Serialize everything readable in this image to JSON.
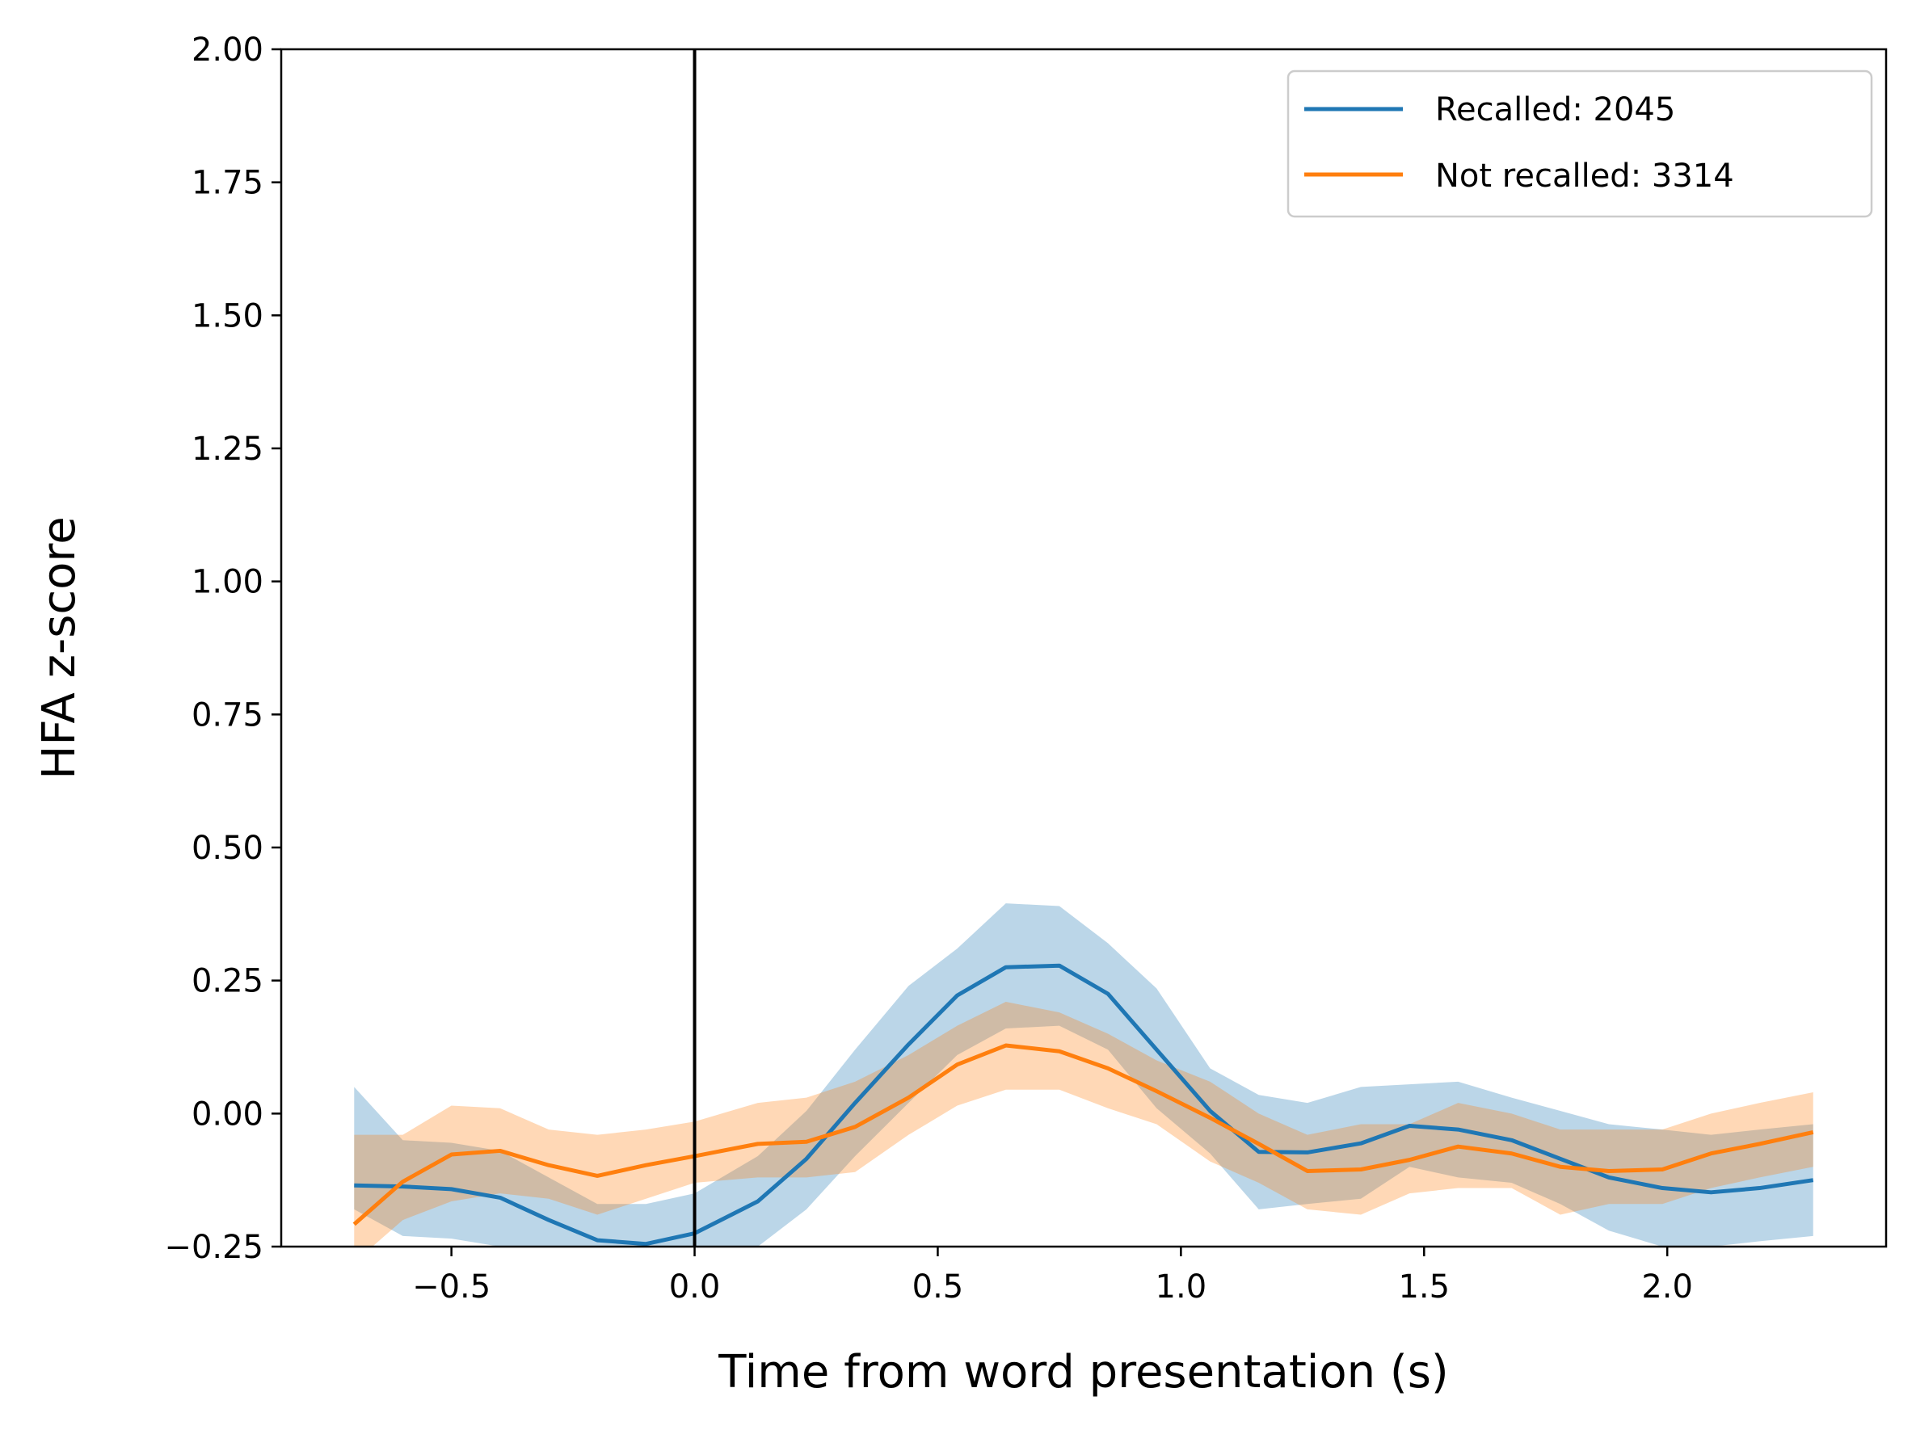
{
  "chart_data": {
    "type": "line",
    "title": "",
    "xlabel": "Time from word presentation (s)",
    "ylabel": "HFA z-score",
    "xlim": [
      -0.85,
      2.45
    ],
    "ylim": [
      -0.25,
      2.0
    ],
    "xticks": [
      -0.5,
      0.0,
      0.5,
      1.0,
      1.5,
      2.0
    ],
    "xtick_labels": [
      "−0.5",
      "0.0",
      "0.5",
      "1.0",
      "1.5",
      "2.0"
    ],
    "yticks": [
      -0.25,
      0.0,
      0.25,
      0.5,
      0.75,
      1.0,
      1.25,
      1.5,
      1.75,
      2.0
    ],
    "ytick_labels": [
      "−0.25",
      "0.00",
      "0.25",
      "0.50",
      "0.75",
      "1.00",
      "1.25",
      "1.50",
      "1.75",
      "2.00"
    ],
    "grid": false,
    "legend_position": "top-right",
    "vertical_line": {
      "x": 0.0,
      "color": "#000000"
    },
    "x": [
      -0.7,
      -0.6,
      -0.5,
      -0.4,
      -0.3,
      -0.2,
      -0.1,
      0.0,
      0.13,
      0.23,
      0.33,
      0.44,
      0.54,
      0.64,
      0.75,
      0.85,
      0.95,
      1.06,
      1.16,
      1.26,
      1.37,
      1.47,
      1.57,
      1.68,
      1.78,
      1.88,
      1.99,
      2.09,
      2.19,
      2.3
    ],
    "series": [
      {
        "name": "Recalled: 2045",
        "color": "#1f77b4",
        "values": [
          -0.135,
          -0.137,
          -0.142,
          -0.158,
          -0.2,
          -0.238,
          -0.245,
          -0.225,
          -0.165,
          -0.085,
          0.02,
          0.13,
          0.222,
          0.275,
          0.278,
          0.225,
          0.12,
          0.005,
          -0.072,
          -0.073,
          -0.056,
          -0.023,
          -0.03,
          -0.05,
          -0.085,
          -0.12,
          -0.14,
          -0.148,
          -0.14,
          -0.125
        ],
        "lower": [
          -0.18,
          -0.23,
          -0.235,
          -0.25,
          -0.28,
          -0.3,
          -0.31,
          -0.3,
          -0.25,
          -0.18,
          -0.08,
          0.02,
          0.11,
          0.16,
          0.165,
          0.12,
          0.01,
          -0.075,
          -0.18,
          -0.17,
          -0.16,
          -0.1,
          -0.12,
          -0.13,
          -0.17,
          -0.22,
          -0.25,
          -0.25,
          -0.24,
          -0.23
        ],
        "upper": [
          0.05,
          -0.05,
          -0.055,
          -0.07,
          -0.12,
          -0.17,
          -0.17,
          -0.15,
          -0.08,
          0.005,
          0.12,
          0.24,
          0.31,
          0.395,
          0.39,
          0.32,
          0.235,
          0.085,
          0.035,
          0.02,
          0.05,
          0.055,
          0.06,
          0.03,
          0.005,
          -0.02,
          -0.03,
          -0.04,
          -0.03,
          -0.02
        ]
      },
      {
        "name": "Not recalled: 3314",
        "color": "#ff7f0e",
        "values": [
          -0.208,
          -0.128,
          -0.077,
          -0.07,
          -0.097,
          -0.117,
          -0.097,
          -0.08,
          -0.057,
          -0.053,
          -0.025,
          0.03,
          0.092,
          0.128,
          0.117,
          0.085,
          0.042,
          -0.008,
          -0.057,
          -0.108,
          -0.105,
          -0.087,
          -0.062,
          -0.075,
          -0.1,
          -0.108,
          -0.105,
          -0.075,
          -0.057,
          -0.035
        ],
        "lower": [
          -0.28,
          -0.2,
          -0.165,
          -0.15,
          -0.16,
          -0.19,
          -0.16,
          -0.13,
          -0.12,
          -0.12,
          -0.11,
          -0.04,
          0.015,
          0.045,
          0.045,
          0.01,
          -0.02,
          -0.09,
          -0.13,
          -0.18,
          -0.19,
          -0.15,
          -0.14,
          -0.14,
          -0.19,
          -0.17,
          -0.17,
          -0.14,
          -0.12,
          -0.1
        ],
        "upper": [
          -0.04,
          -0.04,
          0.015,
          0.01,
          -0.03,
          -0.04,
          -0.03,
          -0.015,
          0.02,
          0.03,
          0.06,
          0.11,
          0.165,
          0.21,
          0.19,
          0.15,
          0.1,
          0.06,
          0.0,
          -0.04,
          -0.02,
          -0.02,
          0.02,
          0.0,
          -0.03,
          -0.03,
          -0.03,
          0.0,
          0.02,
          0.04
        ]
      }
    ]
  }
}
